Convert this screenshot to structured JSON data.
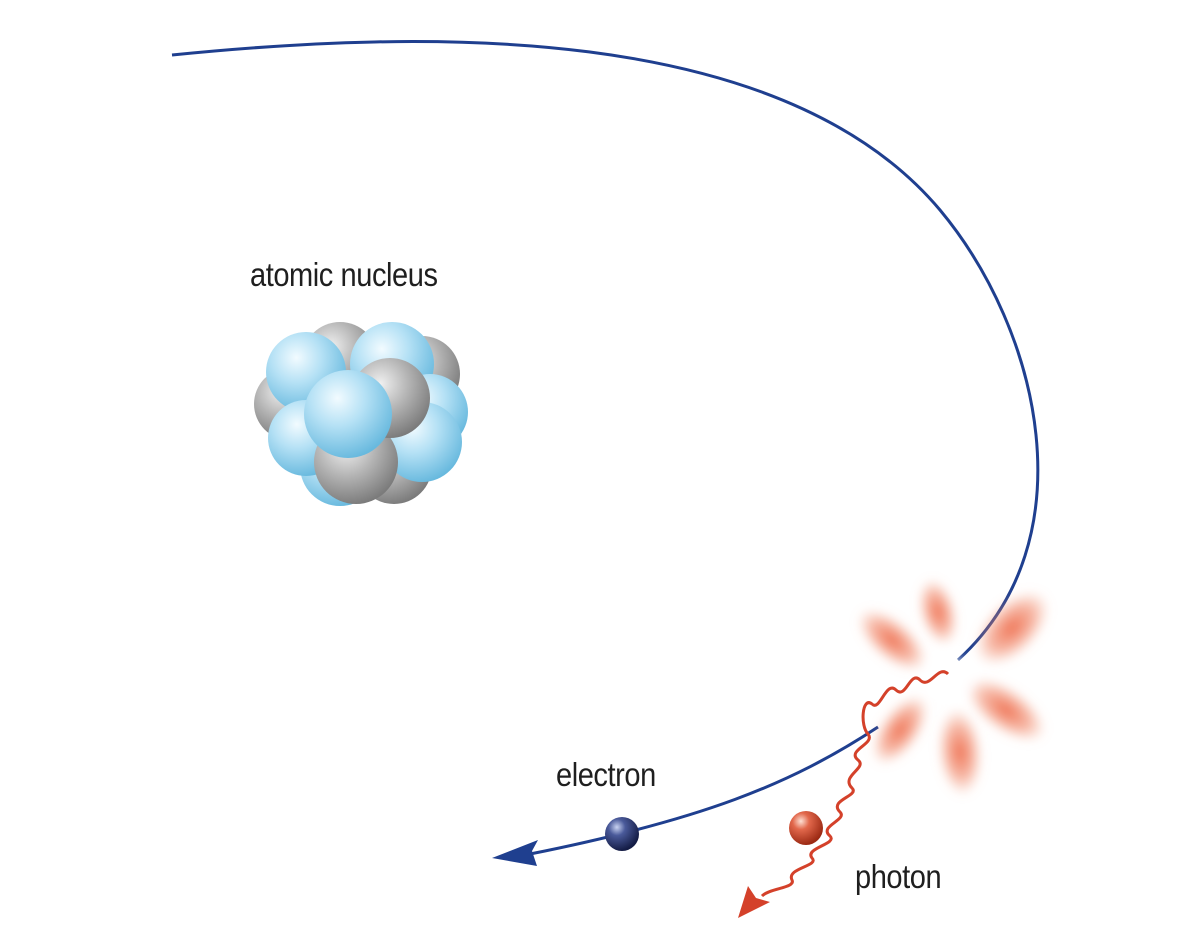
{
  "labels": {
    "nucleus": "atomic nucleus",
    "electron": "electron",
    "photon": "photon"
  },
  "colors": {
    "orbit": "#1f3f8f",
    "photon": "#d4412a",
    "proton_blue": "#8fd0ef",
    "neutron_gray": "#a3a3a3",
    "electron": "#2b3a75",
    "burst": "#ee6a4a"
  },
  "icons": {
    "nucleus": "nucleus-cluster-icon",
    "electron": "electron-sphere-icon",
    "photon": "photon-sphere-icon",
    "emission": "emission-burst-icon"
  }
}
